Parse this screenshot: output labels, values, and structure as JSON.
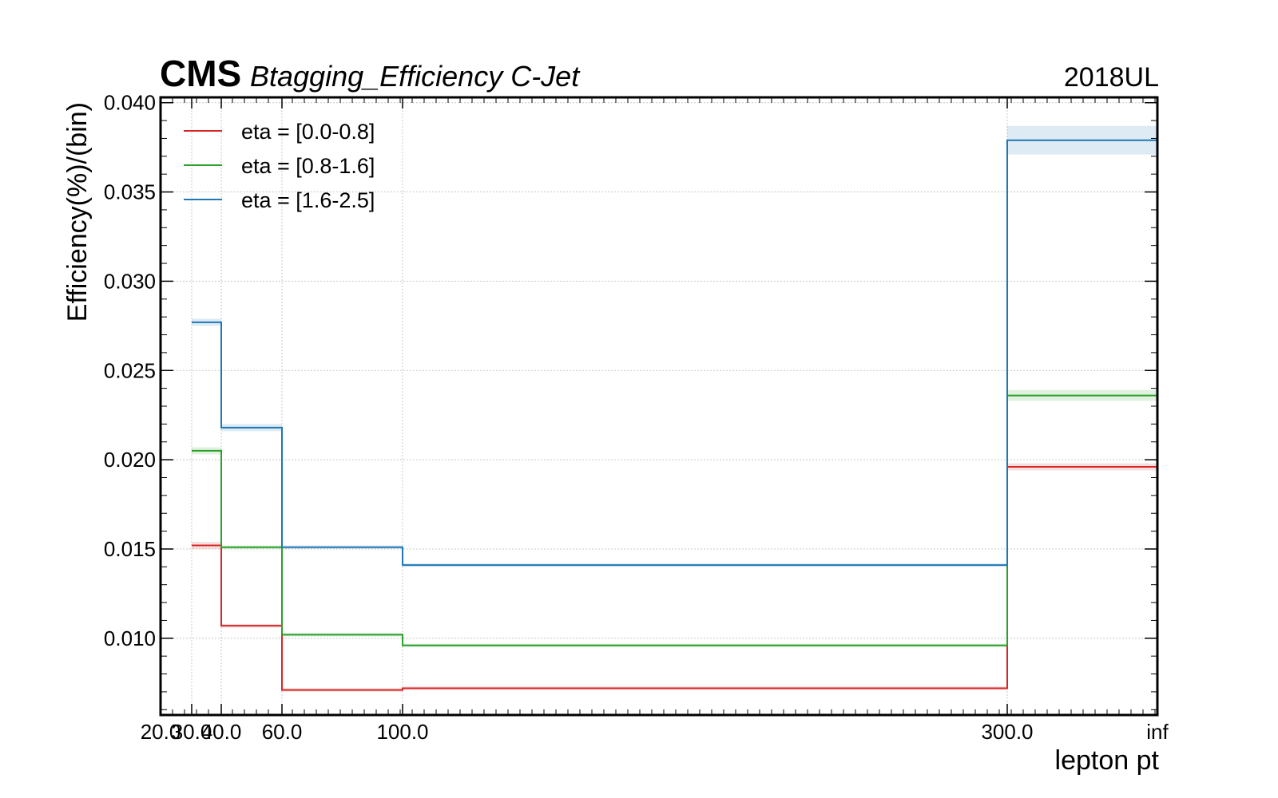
{
  "chart_data": {
    "type": "line",
    "style": "step",
    "title": "Btagging_Efficiency C-Jet",
    "experiment_label": "CMS",
    "top_right_label": "2018UL",
    "xlabel": "lepton pt",
    "ylabel": "Efficiency(%)/(bin)",
    "x_bin_edges": [
      "20.0",
      "30.0",
      "40.0",
      "60.0",
      "100.0",
      "300.0",
      "inf"
    ],
    "x_tick_labels": [
      "20.0",
      "30.0",
      "40.0",
      "60.0",
      "100.0",
      "300.0",
      "inf"
    ],
    "ylim": [
      0.0057,
      0.0403
    ],
    "y_ticks": [
      0.01,
      0.015,
      0.02,
      0.025,
      0.03,
      0.035,
      0.04
    ],
    "y_tick_labels": [
      "0.010",
      "0.015",
      "0.020",
      "0.025",
      "0.030",
      "0.035",
      "0.040"
    ],
    "grid": true,
    "legend_position": "top-left",
    "series": [
      {
        "name": "eta = [0.0-0.8]",
        "color": "#d62728",
        "values": [
          null,
          0.0152,
          0.0107,
          0.0071,
          0.0072,
          0.0196
        ],
        "uncertainty": [
          0,
          0.0002,
          0.0001,
          0.0001,
          0.0001,
          0.0002
        ]
      },
      {
        "name": "eta = [0.8-1.6]",
        "color": "#2ca02c",
        "values": [
          null,
          0.0205,
          0.0151,
          0.0102,
          0.0096,
          0.0236
        ],
        "uncertainty": [
          0,
          0.0002,
          0.0001,
          0.0001,
          0.0001,
          0.0003
        ]
      },
      {
        "name": "eta = [1.6-2.5]",
        "color": "#1f77b4",
        "values": [
          null,
          0.0277,
          0.0218,
          0.0151,
          0.0141,
          0.0379
        ],
        "uncertainty": [
          0,
          0.0002,
          0.0002,
          0.0001,
          0.0001,
          0.0008
        ]
      }
    ]
  }
}
